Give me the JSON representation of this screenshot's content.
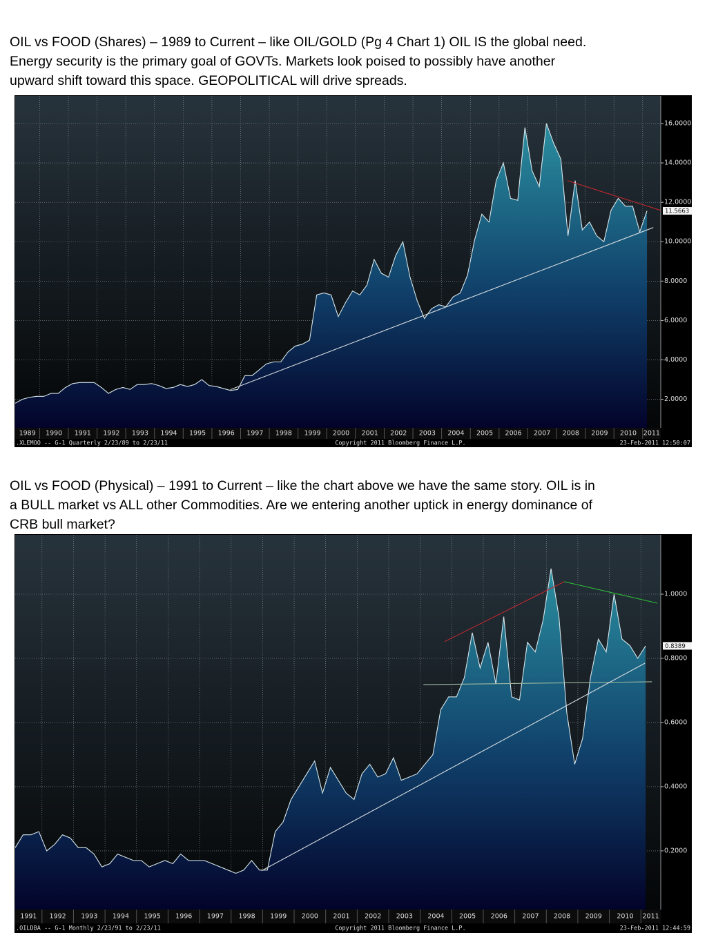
{
  "chart_data": [
    {
      "type": "area",
      "caption": [
        "OIL vs FOOD (Shares) – 1989 to Current – like OIL/GOLD (Pg 4  Chart 1) OIL IS the global need.",
        "Energy security is the primary goal of GOVTs. Markets look poised to possibly have another",
        "upward shift toward this space. GEOPOLITICAL will drive spreads."
      ],
      "x": [
        1989.15,
        1989.4,
        1989.65,
        1989.9,
        1990.15,
        1990.4,
        1990.65,
        1990.9,
        1991.15,
        1991.4,
        1991.65,
        1991.9,
        1992.15,
        1992.4,
        1992.65,
        1992.9,
        1993.15,
        1993.4,
        1993.65,
        1993.9,
        1994.15,
        1994.4,
        1994.65,
        1994.9,
        1995.15,
        1995.4,
        1995.65,
        1995.9,
        1996.15,
        1996.4,
        1996.65,
        1996.9,
        1997.15,
        1997.4,
        1997.65,
        1997.9,
        1998.15,
        1998.4,
        1998.65,
        1998.9,
        1999.15,
        1999.4,
        1999.65,
        1999.9,
        2000.15,
        2000.4,
        2000.65,
        2000.9,
        2001.15,
        2001.4,
        2001.65,
        2001.9,
        2002.15,
        2002.4,
        2002.65,
        2002.9,
        2003.15,
        2003.4,
        2003.65,
        2003.9,
        2004.15,
        2004.4,
        2004.65,
        2004.9,
        2005.15,
        2005.4,
        2005.65,
        2005.9,
        2006.15,
        2006.4,
        2006.65,
        2006.9,
        2007.15,
        2007.4,
        2007.65,
        2007.9,
        2008.15,
        2008.4,
        2008.65,
        2008.9,
        2009.15,
        2009.4,
        2009.65,
        2009.9,
        2010.15,
        2010.4,
        2010.65,
        2010.9,
        2011.15
      ],
      "values": [
        1.8,
        2.0,
        2.1,
        2.15,
        2.15,
        2.3,
        2.3,
        2.6,
        2.8,
        2.85,
        2.85,
        2.85,
        2.6,
        2.3,
        2.5,
        2.6,
        2.5,
        2.75,
        2.75,
        2.8,
        2.7,
        2.55,
        2.6,
        2.75,
        2.65,
        2.75,
        3.0,
        2.7,
        2.65,
        2.55,
        2.45,
        2.5,
        3.2,
        3.2,
        3.5,
        3.8,
        3.9,
        3.9,
        4.4,
        4.7,
        4.8,
        5.0,
        7.3,
        7.4,
        7.3,
        6.2,
        6.9,
        7.5,
        7.3,
        7.8,
        9.1,
        8.4,
        8.2,
        9.3,
        10.0,
        8.2,
        7.0,
        6.1,
        6.6,
        6.8,
        6.7,
        7.2,
        7.4,
        8.3,
        10.1,
        11.4,
        11.0,
        13.1,
        14.0,
        12.2,
        12.1,
        15.8,
        13.6,
        12.8,
        16.0,
        15.0,
        14.2,
        10.3,
        13.1,
        10.6,
        11.0,
        10.3,
        10.0,
        11.6,
        12.2,
        11.8,
        11.8,
        10.5,
        11.5663
      ],
      "xlim": [
        1989.15,
        2011.63
      ],
      "xticks": [
        1989,
        1990,
        1991,
        1992,
        1993,
        1994,
        1995,
        1996,
        1997,
        1998,
        1999,
        2000,
        2001,
        2002,
        2003,
        2004,
        2005,
        2006,
        2007,
        2008,
        2009,
        2010,
        2011
      ],
      "ylim": [
        0.55,
        17.4
      ],
      "yticks": [
        {
          "value": 2,
          "label": "2.0000"
        },
        {
          "value": 4,
          "label": "4.0000"
        },
        {
          "value": 6,
          "label": "6.0000"
        },
        {
          "value": 8,
          "label": "8.0000"
        },
        {
          "value": 10,
          "label": "10.0000"
        },
        {
          "value": 12,
          "label": "12.0000"
        },
        {
          "value": 14,
          "label": "14.0000"
        },
        {
          "value": 16,
          "label": "16.0000"
        }
      ],
      "grid": true,
      "trendlines": [
        {
          "color": "#c0282d",
          "x": [
            2008.38,
            2011.63
          ],
          "y": [
            13.1,
            11.59
          ]
        },
        {
          "color": "#d8dde0",
          "x": [
            1996.64,
            2011.37
          ],
          "y": [
            2.49,
            10.72
          ]
        }
      ],
      "footer": {
        "left": ".XLEMOO --   G-1   Quarterly  2/23/89 to 2/23/11",
        "center": "Copyright 2011 Bloomberg Finance L.P.",
        "right": "23-Feb-2011 12:50:07"
      }
    },
    {
      "type": "area",
      "caption": [
        "OIL vs FOOD (Physical) – 1991 to Current – like the chart above we have the same story. OIL is in",
        "a BULL market vs ALL other Commodities. Are we entering another uptick in energy dominance of",
        "CRB bull market?"
      ],
      "x": [
        1991.15,
        1991.4,
        1991.65,
        1991.9,
        1992.15,
        1992.4,
        1992.65,
        1992.9,
        1993.15,
        1993.4,
        1993.65,
        1993.9,
        1994.15,
        1994.4,
        1994.65,
        1994.9,
        1995.15,
        1995.4,
        1995.65,
        1995.9,
        1996.15,
        1996.4,
        1996.65,
        1996.9,
        1997.15,
        1997.4,
        1997.65,
        1997.9,
        1998.15,
        1998.4,
        1998.65,
        1998.9,
        1999.15,
        1999.4,
        1999.65,
        1999.9,
        2000.15,
        2000.4,
        2000.65,
        2000.9,
        2001.15,
        2001.4,
        2001.65,
        2001.9,
        2002.15,
        2002.4,
        2002.65,
        2002.9,
        2003.15,
        2003.4,
        2003.65,
        2003.9,
        2004.15,
        2004.4,
        2004.65,
        2004.9,
        2005.15,
        2005.4,
        2005.65,
        2005.9,
        2006.15,
        2006.4,
        2006.65,
        2006.9,
        2007.15,
        2007.4,
        2007.65,
        2007.9,
        2008.15,
        2008.4,
        2008.65,
        2008.9,
        2009.15,
        2009.4,
        2009.65,
        2009.9,
        2010.15,
        2010.4,
        2010.65,
        2010.9,
        2011.15
      ],
      "values": [
        0.21,
        0.25,
        0.25,
        0.26,
        0.2,
        0.22,
        0.25,
        0.24,
        0.21,
        0.21,
        0.19,
        0.15,
        0.16,
        0.19,
        0.18,
        0.17,
        0.17,
        0.15,
        0.16,
        0.17,
        0.16,
        0.19,
        0.17,
        0.17,
        0.17,
        0.16,
        0.15,
        0.14,
        0.13,
        0.14,
        0.17,
        0.14,
        0.14,
        0.26,
        0.29,
        0.36,
        0.4,
        0.44,
        0.48,
        0.38,
        0.46,
        0.42,
        0.38,
        0.36,
        0.44,
        0.47,
        0.43,
        0.44,
        0.49,
        0.42,
        0.43,
        0.44,
        0.47,
        0.5,
        0.64,
        0.68,
        0.68,
        0.74,
        0.88,
        0.77,
        0.85,
        0.72,
        0.93,
        0.68,
        0.67,
        0.85,
        0.82,
        0.92,
        1.08,
        0.93,
        0.63,
        0.47,
        0.55,
        0.74,
        0.86,
        0.82,
        1.0,
        0.86,
        0.84,
        0.8,
        0.8389
      ],
      "xlim": [
        1991.15,
        2011.63
      ],
      "xticks": [
        1991,
        1992,
        1993,
        1994,
        1995,
        1996,
        1997,
        1998,
        1999,
        2000,
        2001,
        2002,
        2003,
        2004,
        2005,
        2006,
        2007,
        2008,
        2009,
        2010,
        2011
      ],
      "ylim": [
        0.017,
        1.185
      ],
      "yticks": [
        {
          "value": 0.2,
          "label": "0.2000"
        },
        {
          "value": 0.4,
          "label": "0.4000"
        },
        {
          "value": 0.6,
          "label": "0.6000"
        },
        {
          "value": 0.8,
          "label": "0.8000"
        },
        {
          "value": 1.0,
          "label": "1.0000"
        }
      ],
      "grid": true,
      "trendlines": [
        {
          "color": "#c0282d",
          "x": [
            2004.77,
            2008.57
          ],
          "y": [
            0.852,
            1.039
          ]
        },
        {
          "color": "#2fbf3a",
          "x": [
            2008.57,
            2011.52
          ],
          "y": [
            1.039,
            0.972
          ]
        },
        {
          "color": "#9fb8a0",
          "x": [
            2004.1,
            2011.35
          ],
          "y": [
            0.718,
            0.727
          ]
        },
        {
          "color": "#d8dde0",
          "x": [
            1998.97,
            2011.13
          ],
          "y": [
            0.138,
            0.785
          ]
        }
      ],
      "footer": {
        "left": ".OILDBA --   G-1   Monthly  2/23/91 to 2/23/11",
        "center": "Copyright 2011 Bloomberg Finance L.P.",
        "right": "23-Feb-2011 12:44:59"
      }
    }
  ]
}
